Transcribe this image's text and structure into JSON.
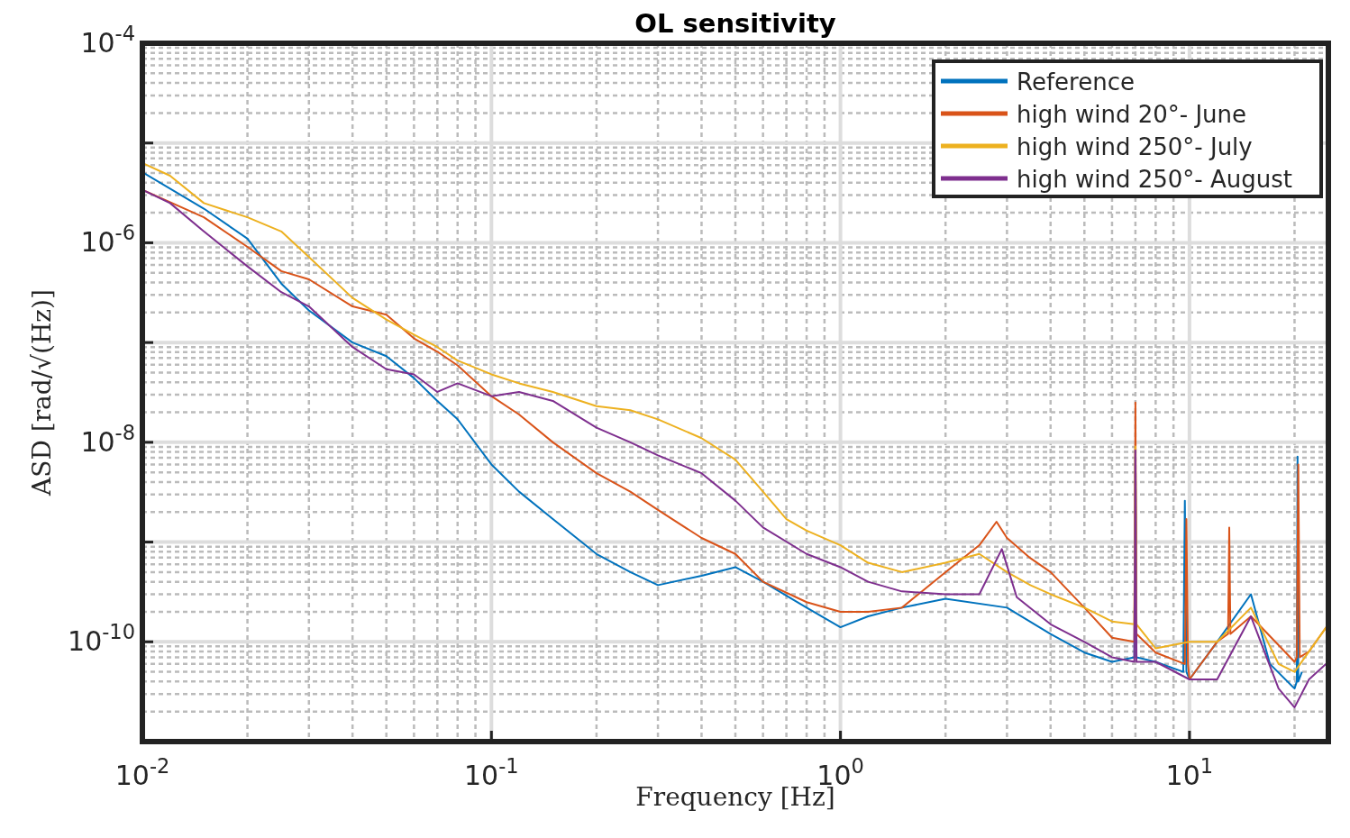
{
  "chart_data": {
    "type": "line",
    "title": "OL sensitivity",
    "xlabel": "Frequency [Hz]",
    "ylabel": "ASD [rad/√(Hz)]",
    "log": "xy",
    "grid": true,
    "legend": "top right",
    "xlim": [
      0.01,
      25
    ],
    "xticks": [
      {
        "value": 0.01,
        "label": "10$^{-2}$"
      },
      {
        "value": 0.1,
        "label": "10$^{-1}$"
      },
      {
        "value": 1,
        "label": "10$^{0}$"
      },
      {
        "value": 10,
        "label": "10$^{1}$"
      }
    ],
    "ylim": [
      1e-11,
      0.0001
    ],
    "yticks": [
      {
        "value": 1e-11,
        "label": null
      },
      {
        "value": 1e-10,
        "label": "10$^{-10}$"
      },
      {
        "value": 1e-09,
        "label": null
      },
      {
        "value": 1e-08,
        "label": "10$^{-8}$"
      },
      {
        "value": 1e-07,
        "label": null
      },
      {
        "value": 1e-06,
        "label": "10$^{-6}$"
      },
      {
        "value": 1e-05,
        "label": null
      },
      {
        "value": 0.0001,
        "label": "10$^{-4}$"
      }
    ],
    "series": [
      {
        "name": "Reference",
        "color": "#0072bd",
        "x": [
          0.01,
          0.015,
          0.02,
          0.025,
          0.03,
          0.04,
          0.05,
          0.06,
          0.07,
          0.08,
          0.1,
          0.12,
          0.15,
          0.2,
          0.25,
          0.3,
          0.4,
          0.5,
          0.6,
          0.8,
          1,
          1.2,
          1.5,
          2,
          3,
          4,
          5,
          6,
          6.95,
          7,
          7.05,
          8,
          9.6,
          9.7,
          9.8,
          10,
          12,
          15,
          17,
          20,
          20.3,
          20.4,
          20.5,
          21
        ],
        "values": [
          5.1e-06,
          2.2e-06,
          1.1e-06,
          3.9e-07,
          2.1e-07,
          1e-07,
          7.3e-08,
          4.4e-08,
          2.6e-08,
          1.7e-08,
          6e-09,
          3.2e-09,
          1.7e-09,
          7.6e-10,
          5e-10,
          3.7e-10,
          4.6e-10,
          5.6e-10,
          4e-10,
          2.2e-10,
          1.4e-10,
          1.8e-10,
          2.2e-10,
          2.7e-10,
          2.2e-10,
          1.2e-10,
          7.8e-11,
          6.3e-11,
          7e-11,
          8.3e-09,
          7e-11,
          6.3e-11,
          5e-11,
          2.6e-09,
          5e-11,
          4.2e-11,
          1e-10,
          3e-10,
          6e-11,
          3.4e-11,
          4e-11,
          7.2e-09,
          4e-11,
          5e-11
        ]
      },
      {
        "name": "high wind 20°- June",
        "color": "#d95319",
        "x": [
          0.01,
          0.015,
          0.02,
          0.025,
          0.03,
          0.04,
          0.05,
          0.06,
          0.07,
          0.08,
          0.1,
          0.12,
          0.15,
          0.2,
          0.25,
          0.3,
          0.4,
          0.5,
          0.6,
          0.8,
          1,
          1.2,
          1.5,
          2,
          2.5,
          2.8,
          3,
          3.5,
          4,
          5,
          6,
          6.95,
          7,
          7.05,
          8,
          9.7,
          9.8,
          9.9,
          10,
          12,
          12.9,
          13,
          13.1,
          15,
          20,
          20.3,
          20.5,
          20.7,
          22,
          25
        ],
        "values": [
          3.4e-06,
          1.8e-06,
          9.1e-07,
          5.2e-07,
          4.3e-07,
          2.3e-07,
          1.9e-07,
          1.1e-07,
          8.1e-08,
          5.9e-08,
          2.9e-08,
          1.9e-08,
          1e-08,
          4.9e-09,
          3.2e-09,
          2.1e-09,
          1.1e-09,
          7.6e-10,
          4e-10,
          2.5e-10,
          2e-10,
          2e-10,
          2.2e-10,
          5e-10,
          9.3e-10,
          1.6e-09,
          1.1e-09,
          6.9e-10,
          5e-10,
          2.2e-10,
          1.1e-10,
          1e-10,
          2.5e-08,
          1.2e-10,
          7.8e-11,
          6e-11,
          1.7e-09,
          6e-11,
          4.2e-11,
          1e-10,
          1.2e-10,
          1.4e-09,
          1.2e-10,
          1.8e-10,
          6.3e-11,
          7e-11,
          6e-09,
          7e-11,
          8e-11,
          1.5e-10
        ]
      },
      {
        "name": "high wind 250°- July",
        "color": "#edb120",
        "x": [
          0.01,
          0.012,
          0.015,
          0.02,
          0.025,
          0.03,
          0.04,
          0.05,
          0.06,
          0.07,
          0.08,
          0.1,
          0.12,
          0.15,
          0.2,
          0.25,
          0.3,
          0.4,
          0.5,
          0.6,
          0.7,
          0.8,
          1,
          1.2,
          1.5,
          2,
          2.5,
          3,
          3.5,
          4,
          5,
          6,
          6.95,
          7,
          7.05,
          8,
          10,
          12,
          15,
          18,
          20,
          25
        ],
        "values": [
          6.3e-06,
          4.7e-06,
          2.5e-06,
          1.8e-06,
          1.3e-06,
          7.2e-07,
          2.8e-07,
          1.7e-07,
          1.2e-07,
          9e-08,
          6.6e-08,
          4.8e-08,
          3.9e-08,
          3.2e-08,
          2.3e-08,
          2.1e-08,
          1.7e-08,
          1.1e-08,
          6.7e-09,
          3.2e-09,
          1.7e-09,
          1.3e-09,
          9.3e-10,
          6.2e-10,
          5e-10,
          6.2e-10,
          7.6e-10,
          5e-10,
          3.7e-10,
          3e-10,
          2.2e-10,
          1.6e-10,
          1.5e-10,
          9.1e-09,
          1.5e-10,
          8.6e-11,
          1e-10,
          1e-10,
          2.2e-10,
          6e-11,
          5e-11,
          1.5e-10
        ]
      },
      {
        "name": "high wind 250°- August",
        "color": "#7e2f8e",
        "x": [
          0.01,
          0.012,
          0.015,
          0.02,
          0.025,
          0.03,
          0.04,
          0.05,
          0.06,
          0.07,
          0.08,
          0.1,
          0.12,
          0.15,
          0.2,
          0.25,
          0.3,
          0.4,
          0.5,
          0.6,
          0.8,
          1,
          1.2,
          1.5,
          2,
          2.5,
          2.9,
          3.2,
          4,
          5,
          6,
          6.95,
          7,
          7.05,
          8,
          10,
          12,
          15,
          18,
          20,
          22,
          25
        ],
        "values": [
          3.4e-06,
          2.5e-06,
          1.3e-06,
          5.8e-07,
          3.2e-07,
          2.3e-07,
          9e-08,
          5.4e-08,
          4.8e-08,
          3.2e-08,
          3.9e-08,
          2.9e-08,
          3.2e-08,
          2.6e-08,
          1.4e-08,
          1e-08,
          7.4e-09,
          4.9e-09,
          2.6e-09,
          1.4e-09,
          7.6e-10,
          5.6e-10,
          4e-10,
          3.2e-10,
          3e-10,
          3e-10,
          8.5e-10,
          2.8e-10,
          1.5e-10,
          1e-10,
          7e-11,
          6.3e-11,
          8.3e-09,
          6.3e-11,
          6.3e-11,
          4.2e-11,
          4.2e-11,
          1.8e-10,
          3.4e-11,
          2.2e-11,
          4.2e-11,
          6.3e-11
        ]
      }
    ]
  }
}
